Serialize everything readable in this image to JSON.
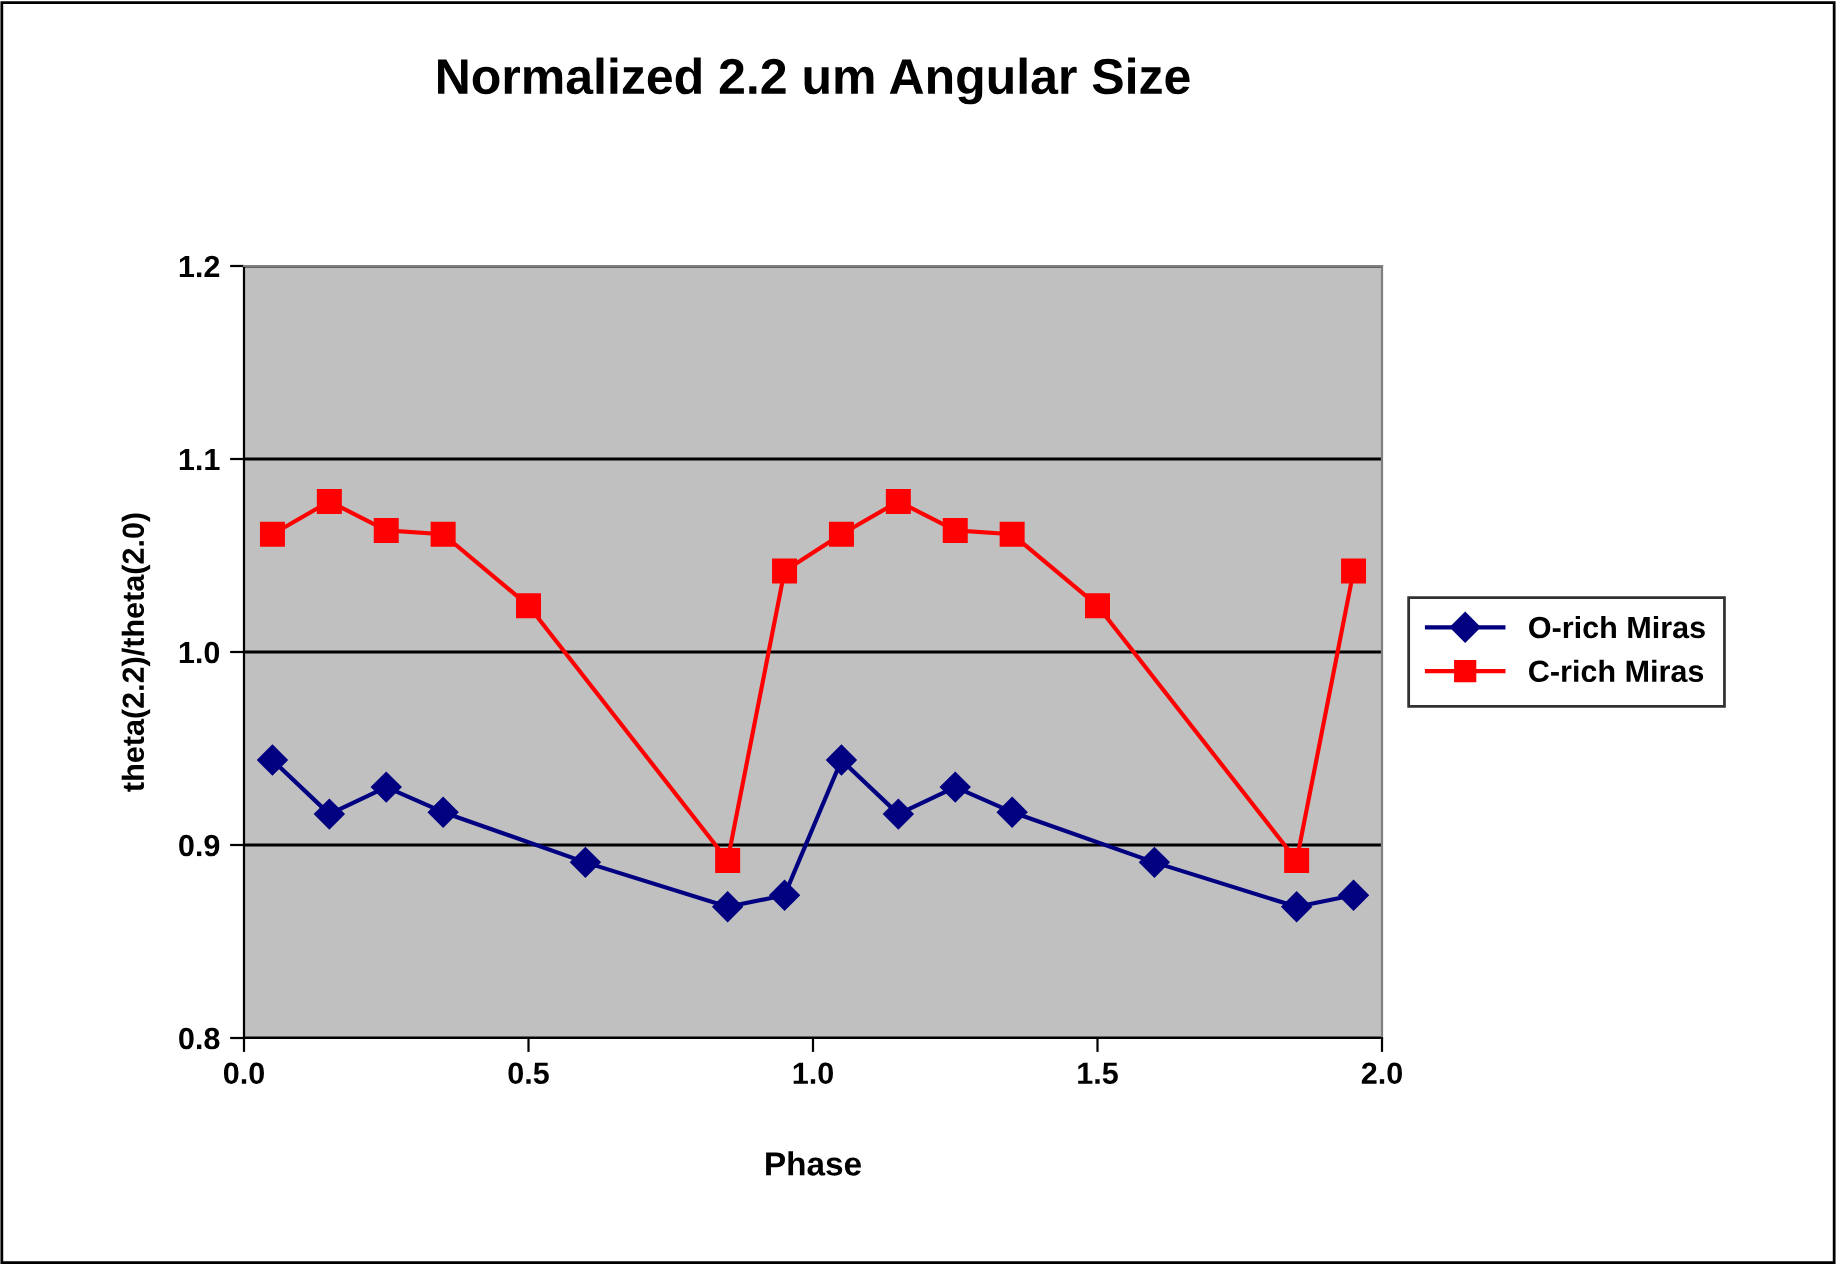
{
  "chart_data": {
    "type": "line",
    "title": "Normalized 2.2 um Angular Size",
    "xlabel": "Phase",
    "ylabel": "theta(2.2)/theta(2.0)",
    "series": [
      {
        "name": "O-rich Miras",
        "color": "#000080",
        "marker": "diamond",
        "x": [
          0.05,
          0.15,
          0.25,
          0.35,
          0.6,
          0.85,
          0.95,
          1.05,
          1.15,
          1.25,
          1.35,
          1.6,
          1.85,
          1.95
        ],
        "values": [
          0.944,
          0.916,
          0.93,
          0.917,
          0.891,
          0.868,
          0.874,
          0.944,
          0.916,
          0.93,
          0.917,
          0.891,
          0.868,
          0.874
        ]
      },
      {
        "name": "C-rich Miras",
        "color": "#ff0000",
        "marker": "square",
        "x": [
          0.05,
          0.15,
          0.25,
          0.35,
          0.5,
          0.85,
          0.95,
          1.05,
          1.15,
          1.25,
          1.35,
          1.5,
          1.85,
          1.95
        ],
        "values": [
          1.061,
          1.078,
          1.063,
          1.061,
          1.024,
          0.892,
          1.042,
          1.061,
          1.078,
          1.063,
          1.061,
          1.024,
          0.892,
          1.042
        ]
      }
    ],
    "xlim": [
      0.0,
      2.0
    ],
    "xticks": [
      {
        "value": 0.0,
        "label": "0.0"
      },
      {
        "value": 0.5,
        "label": "0.5"
      },
      {
        "value": 1.0,
        "label": "1.0"
      },
      {
        "value": 1.5,
        "label": "1.5"
      },
      {
        "value": 2.0,
        "label": "2.0"
      }
    ],
    "ylim": [
      0.8,
      1.2
    ],
    "yticks": [
      {
        "value": 0.8,
        "label": "0.8"
      },
      {
        "value": 0.9,
        "label": "0.9"
      },
      {
        "value": 1.0,
        "label": "1.0"
      },
      {
        "value": 1.1,
        "label": "1.1"
      },
      {
        "value": 1.2,
        "label": "1.2"
      }
    ],
    "grid": "y",
    "legend": "right",
    "line_style": "solid"
  }
}
